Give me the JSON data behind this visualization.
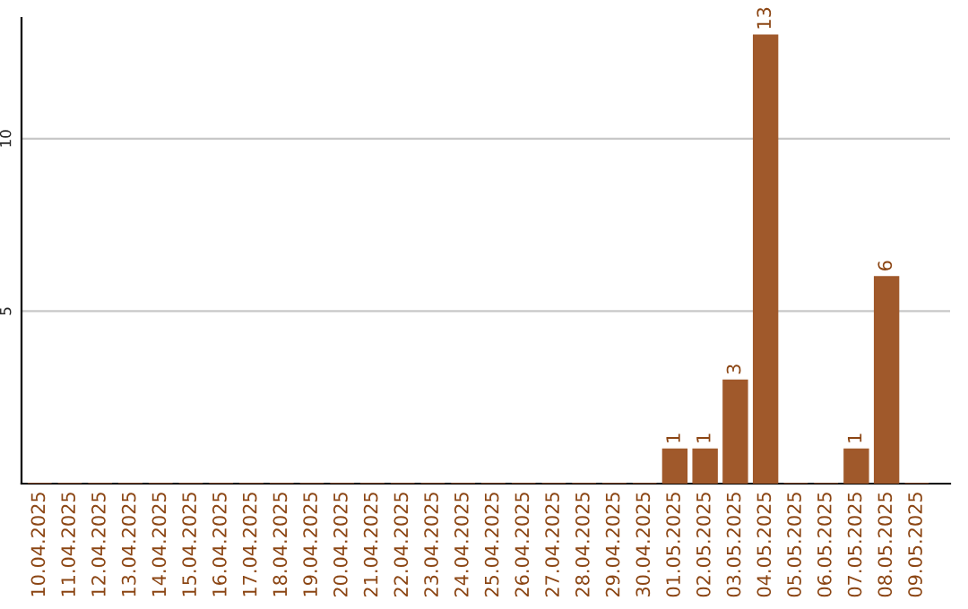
{
  "chart_data": {
    "type": "bar",
    "categories": [
      "10.04.2025",
      "11.04.2025",
      "12.04.2025",
      "13.04.2025",
      "14.04.2025",
      "15.04.2025",
      "16.04.2025",
      "17.04.2025",
      "18.04.2025",
      "19.04.2025",
      "20.04.2025",
      "21.04.2025",
      "22.04.2025",
      "23.04.2025",
      "24.04.2025",
      "25.04.2025",
      "26.04.2025",
      "27.04.2025",
      "28.04.2025",
      "29.04.2025",
      "30.04.2025",
      "01.05.2025",
      "02.05.2025",
      "03.05.2025",
      "04.05.2025",
      "05.05.2025",
      "06.05.2025",
      "07.05.2025",
      "08.05.2025",
      "09.05.2025"
    ],
    "values": [
      0,
      0,
      0,
      0,
      0,
      0,
      0,
      0,
      0,
      0,
      0,
      0,
      0,
      0,
      0,
      0,
      0,
      0,
      0,
      0,
      0,
      1,
      1,
      3,
      13,
      0,
      0,
      1,
      6,
      0
    ],
    "value_labels": [
      null,
      null,
      null,
      null,
      null,
      null,
      null,
      null,
      null,
      null,
      null,
      null,
      null,
      null,
      null,
      null,
      null,
      null,
      null,
      null,
      null,
      "1",
      "1",
      "3",
      "13",
      null,
      null,
      "1",
      "6",
      null
    ],
    "color": "#a0592b",
    "ylim": [
      0,
      13.5
    ],
    "yticks": [
      5,
      10
    ],
    "grid": "y"
  }
}
